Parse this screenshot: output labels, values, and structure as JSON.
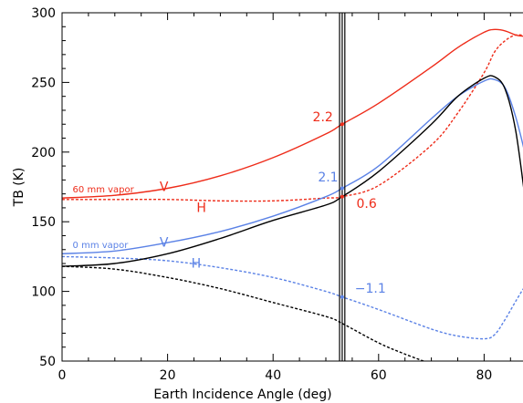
{
  "chart_data": {
    "type": "line",
    "title": "",
    "xlabel": "Earth Incidence Angle (deg)",
    "ylabel": "TB (K)",
    "xlim": [
      0,
      90
    ],
    "ylim": [
      50,
      300
    ],
    "xticks": [
      0,
      20,
      40,
      60,
      80
    ],
    "yticks": [
      50,
      100,
      150,
      200,
      250,
      300
    ],
    "xtick_labels": [
      "0",
      "20",
      "40",
      "60",
      "80"
    ],
    "ytick_labels": [
      "50",
      "100",
      "150",
      "200",
      "250",
      "300"
    ],
    "grid": false,
    "vertical_lines_x": [
      52.6,
      53.1,
      53.6
    ],
    "colors": {
      "red": "#ee2c1a",
      "blue": "#5b82e6",
      "black": "#000000"
    },
    "series": [
      {
        "group": "60 mm vapor",
        "pol": "V",
        "color": "#ee2c1a",
        "dash": "solid",
        "x": [
          0,
          10,
          20,
          30,
          40,
          50,
          53.1,
          60,
          70,
          75,
          80,
          82,
          84,
          86,
          88,
          90
        ],
        "y": [
          167,
          169,
          174,
          183,
          196,
          213,
          220,
          235,
          261,
          275,
          286,
          288,
          287,
          284,
          283,
          283
        ]
      },
      {
        "group": "60 mm vapor",
        "pol": "H",
        "color": "#ee2c1a",
        "dash": "dashed",
        "x": [
          0,
          10,
          20,
          30,
          40,
          50,
          53.1,
          60,
          70,
          75,
          80,
          82,
          84,
          86,
          88,
          90
        ],
        "y": [
          166,
          166,
          166,
          165,
          165,
          167,
          168,
          176,
          205,
          228,
          257,
          272,
          280,
          284,
          283,
          279
        ]
      },
      {
        "group": "0 mm vapor",
        "pol": "V",
        "color": "#5b82e6",
        "dash": "solid",
        "x": [
          0,
          10,
          20,
          30,
          40,
          50,
          53.1,
          60,
          70,
          75,
          80,
          82,
          84,
          86,
          88,
          90
        ],
        "y": [
          127,
          129,
          135,
          143,
          154,
          168,
          174,
          190,
          224,
          240,
          251,
          252,
          246,
          225,
          195,
          160
        ]
      },
      {
        "group": "0 mm vapor",
        "pol": "H",
        "color": "#5b82e6",
        "dash": "dashed",
        "x": [
          0,
          10,
          20,
          30,
          40,
          50,
          53.1,
          60,
          70,
          75,
          80,
          82,
          84,
          86,
          88,
          90
        ],
        "y": [
          125,
          124,
          122,
          117,
          110,
          100,
          96,
          87,
          73,
          68,
          66,
          69,
          80,
          93,
          105,
          113
        ]
      },
      {
        "group": "",
        "pol": "",
        "color": "#000000",
        "dash": "solid",
        "x": [
          0,
          10,
          20,
          30,
          40,
          50,
          53.1,
          60,
          70,
          75,
          80,
          82,
          84,
          86,
          88,
          90
        ],
        "y": [
          118,
          120,
          127,
          138,
          151,
          162,
          168,
          186,
          220,
          240,
          253,
          254,
          245,
          215,
          160,
          105
        ]
      },
      {
        "group": "",
        "pol": "",
        "color": "#000000",
        "dash": "dashed",
        "x": [
          0,
          10,
          20,
          30,
          40,
          50,
          53.1,
          60,
          65,
          70
        ],
        "y": [
          118,
          116,
          110,
          102,
          92,
          82,
          77,
          63,
          55,
          48
        ]
      }
    ],
    "series_labels": [
      {
        "text": "60 mm vapor",
        "x": 2,
        "y": 171,
        "color": "#ee2c1a",
        "size": "small"
      },
      {
        "text": "V",
        "x": 18.5,
        "y": 172,
        "color": "#ee2c1a",
        "size": "big"
      },
      {
        "text": "H",
        "x": 25.5,
        "y": 157,
        "color": "#ee2c1a",
        "size": "big"
      },
      {
        "text": "0 mm vapor",
        "x": 2,
        "y": 131,
        "color": "#5b82e6",
        "size": "small"
      },
      {
        "text": "V",
        "x": 18.5,
        "y": 132,
        "color": "#5b82e6",
        "size": "big"
      },
      {
        "text": "H",
        "x": 24.5,
        "y": 117,
        "color": "#5b82e6",
        "size": "big"
      }
    ],
    "annotations": [
      {
        "text": "2.2",
        "x": 47.5,
        "y": 222,
        "color": "#ee2c1a"
      },
      {
        "text": "2.1",
        "x": 48.5,
        "y": 179,
        "color": "#5b82e6"
      },
      {
        "text": "0.6",
        "x": 55.8,
        "y": 160,
        "color": "#ee2c1a"
      },
      {
        "text": "−1.1",
        "x": 55.5,
        "y": 99,
        "color": "#5b82e6"
      }
    ],
    "markers": [
      {
        "x": 53.1,
        "y": 220,
        "color": "#ee2c1a"
      },
      {
        "x": 53.1,
        "y": 174,
        "color": "#5b82e6"
      },
      {
        "x": 53.1,
        "y": 168,
        "color": "#ee2c1a"
      },
      {
        "x": 53.1,
        "y": 96,
        "color": "#5b82e6"
      }
    ]
  }
}
